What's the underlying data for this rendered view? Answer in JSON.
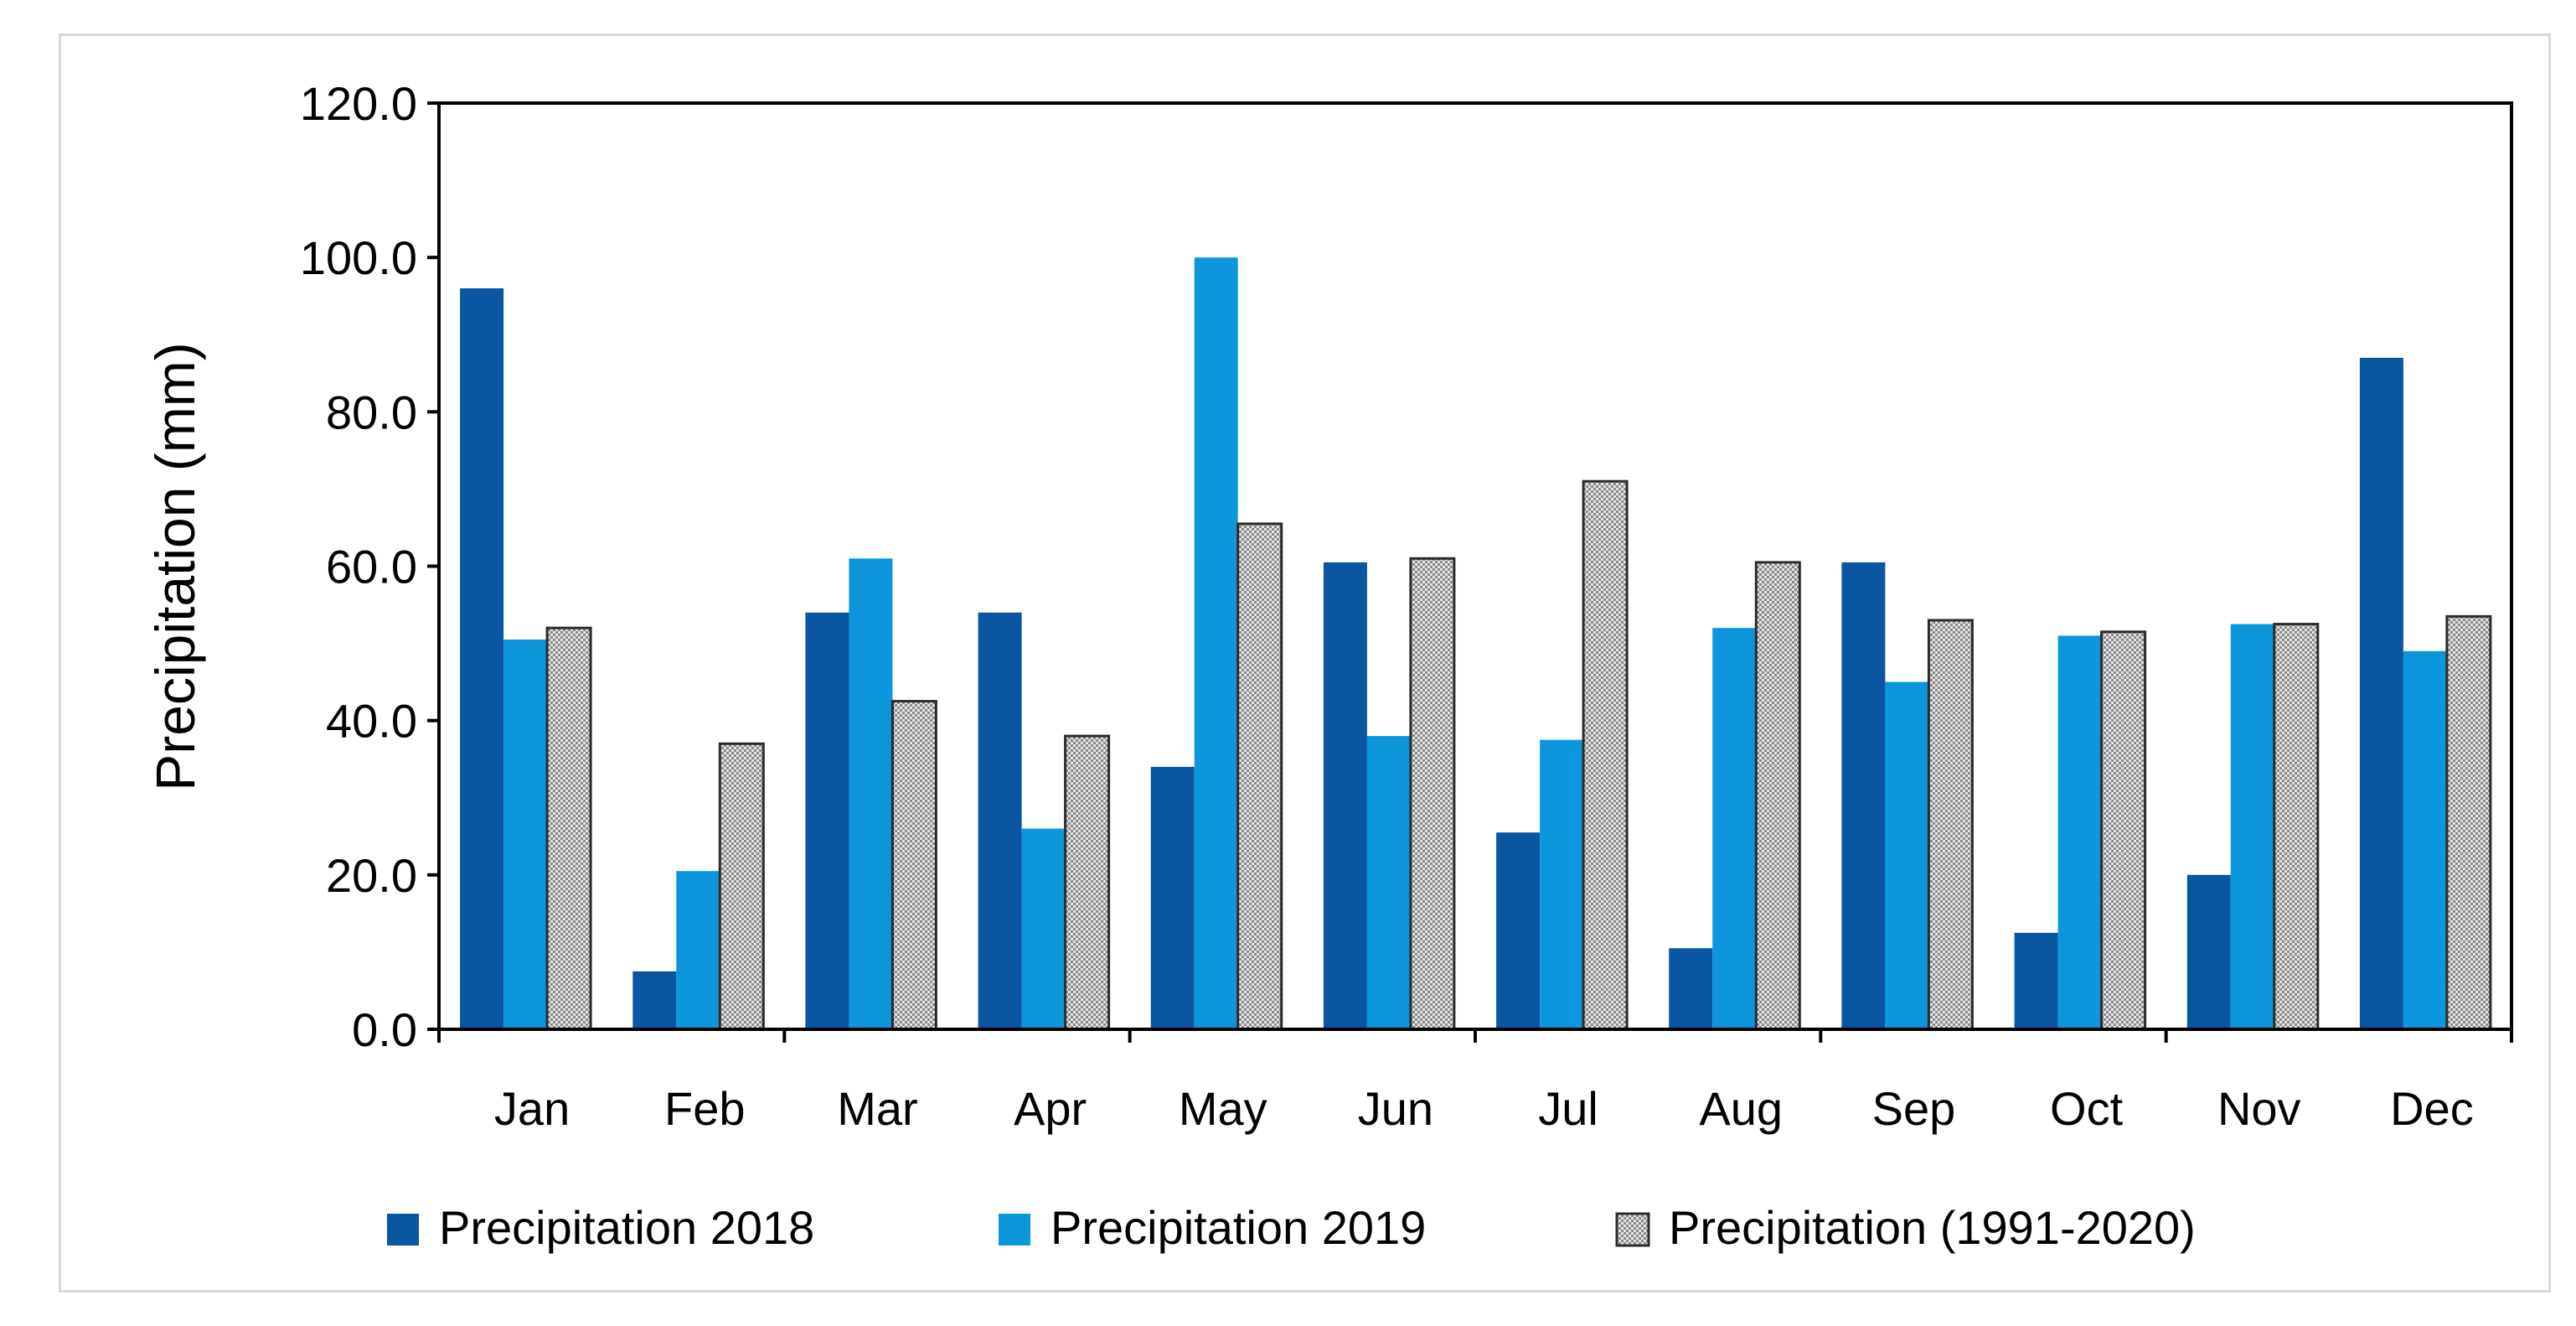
{
  "chart_data": {
    "type": "bar",
    "title": "",
    "xlabel": "",
    "ylabel": "Precipitation (mm)",
    "ylim": [
      0,
      120
    ],
    "yticks": [
      "0.0",
      "20.0",
      "40.0",
      "60.0",
      "80.0",
      "100.0",
      "120.0"
    ],
    "ytick_values": [
      0,
      20,
      40,
      60,
      80,
      100,
      120
    ],
    "grid": false,
    "legend_position": "bottom",
    "categories": [
      "Jan",
      "Feb",
      "Mar",
      "Apr",
      "May",
      "Jun",
      "Jul",
      "Aug",
      "Sep",
      "Oct",
      "Nov",
      "Dec"
    ],
    "series": [
      {
        "name": "Precipitation 2018",
        "color": "#0a56a0",
        "pattern": "solid",
        "values": [
          96.0,
          7.5,
          54.0,
          54.0,
          34.0,
          60.5,
          25.5,
          10.5,
          60.5,
          12.5,
          20.0,
          87.0
        ]
      },
      {
        "name": "Precipitation 2019",
        "color": "#0e96dc",
        "pattern": "solid",
        "values": [
          50.5,
          20.5,
          61.0,
          26.0,
          100.0,
          38.0,
          37.5,
          52.0,
          45.0,
          51.0,
          52.5,
          49.0
        ]
      },
      {
        "name": "Precipitation (1991-2020)",
        "color": "#c8c8c8",
        "pattern": "checker",
        "values": [
          52.0,
          37.0,
          42.5,
          38.0,
          65.5,
          61.0,
          71.0,
          60.5,
          53.0,
          51.5,
          52.5,
          53.5
        ]
      }
    ]
  }
}
